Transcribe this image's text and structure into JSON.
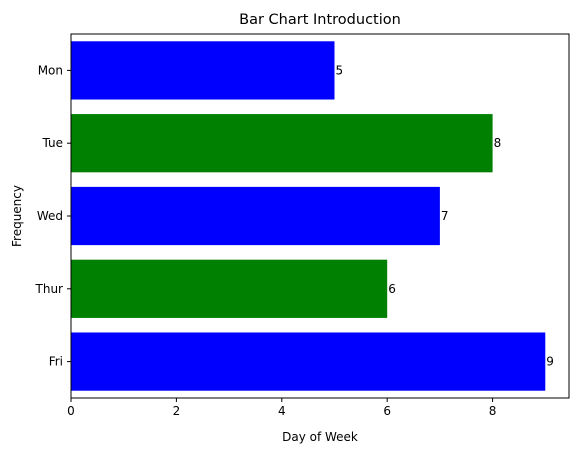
{
  "chart_data": {
    "type": "bar",
    "orientation": "horizontal",
    "title": "Bar Chart Introduction",
    "xlabel": "Day of Week",
    "ylabel": "Frequency",
    "categories": [
      "Mon",
      "Tue",
      "Wed",
      "Thur",
      "Fri"
    ],
    "values": [
      5,
      8,
      7,
      6,
      9
    ],
    "bar_colors": [
      "#0000ff",
      "#008000",
      "#0000ff",
      "#008000",
      "#0000ff"
    ],
    "data_labels": [
      "5",
      "8",
      "7",
      "6",
      "9"
    ],
    "xlim": [
      0,
      9.45
    ],
    "xticks": [
      0,
      2,
      4,
      6,
      8
    ],
    "xtick_labels": [
      "0",
      "2",
      "4",
      "6",
      "8"
    ],
    "grid": false,
    "legend": "none"
  }
}
